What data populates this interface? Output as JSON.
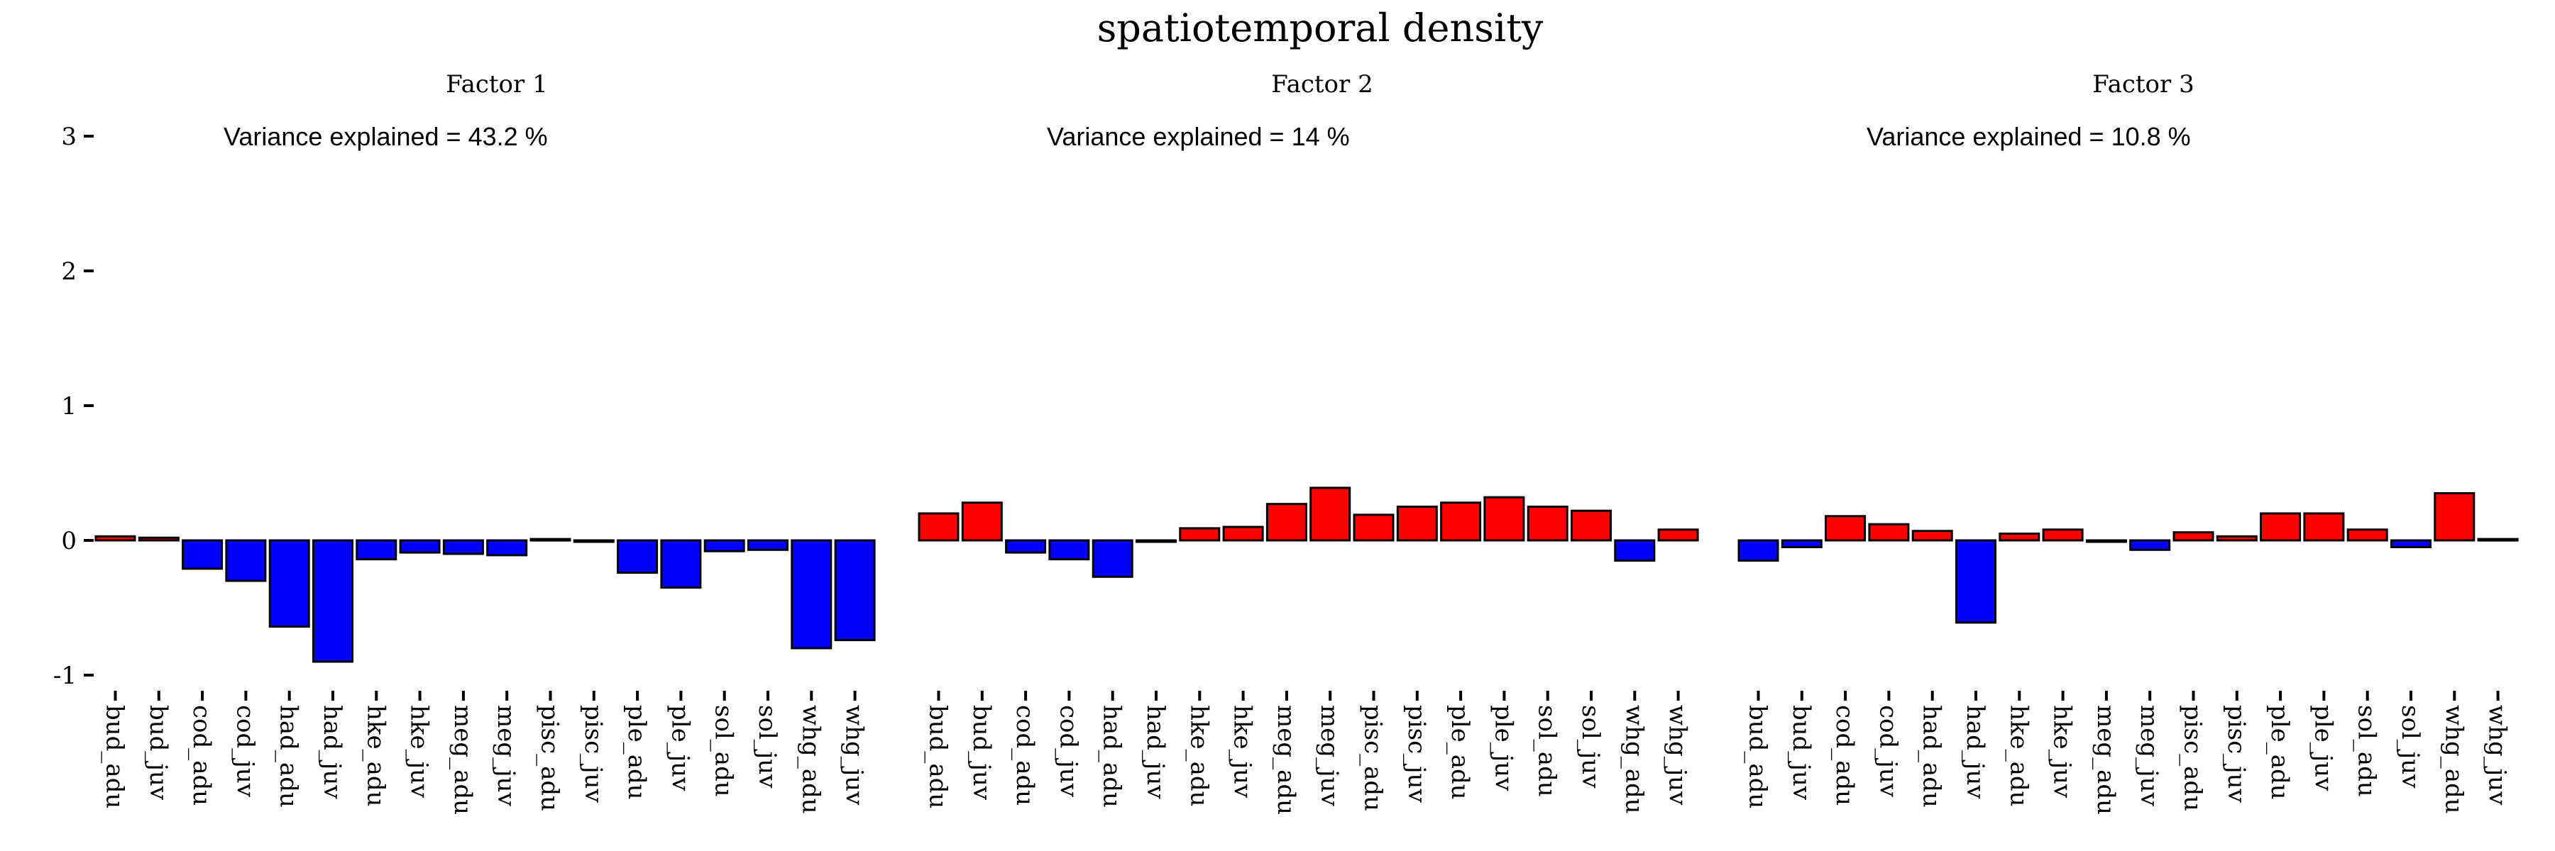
{
  "chart_data": {
    "type": "bar",
    "title": "spatiotemporal density",
    "categories": [
      "bud_adu",
      "bud_juv",
      "cod_adu",
      "cod_juv",
      "had_adu",
      "had_juv",
      "hke_adu",
      "hke_juv",
      "meg_adu",
      "meg_juv",
      "pisc_adu",
      "pisc_juv",
      "ple_adu",
      "ple_juv",
      "sol_adu",
      "sol_juv",
      "whg_adu",
      "whg_juv"
    ],
    "ylim": [
      -1,
      3
    ],
    "yticks": [
      3,
      2,
      1,
      0,
      -1
    ],
    "colors": {
      "positive": "#ff0000",
      "negative": "#0000ff"
    },
    "panels": [
      {
        "title": "Factor 1",
        "variance_label": "Variance explained =  43.2 %",
        "values": [
          0.03,
          0.02,
          -0.21,
          -0.3,
          -0.64,
          -0.9,
          -0.14,
          -0.09,
          -0.1,
          -0.11,
          0.01,
          -0.01,
          -0.24,
          -0.35,
          -0.08,
          -0.07,
          -0.8,
          -0.74
        ]
      },
      {
        "title": "Factor 2",
        "variance_label": "Variance explained =  14 %",
        "values": [
          0.2,
          0.28,
          -0.09,
          -0.14,
          -0.27,
          -0.01,
          0.09,
          0.1,
          0.27,
          0.39,
          0.19,
          0.25,
          0.28,
          0.32,
          0.25,
          0.22,
          -0.15,
          0.08
        ]
      },
      {
        "title": "Factor 3",
        "variance_label": "Variance explained =  10.8 %",
        "values": [
          -0.15,
          -0.05,
          0.18,
          0.12,
          0.07,
          -0.61,
          0.05,
          0.08,
          -0.01,
          -0.07,
          0.06,
          0.03,
          0.2,
          0.2,
          0.08,
          -0.05,
          0.35,
          0.01
        ]
      }
    ]
  }
}
